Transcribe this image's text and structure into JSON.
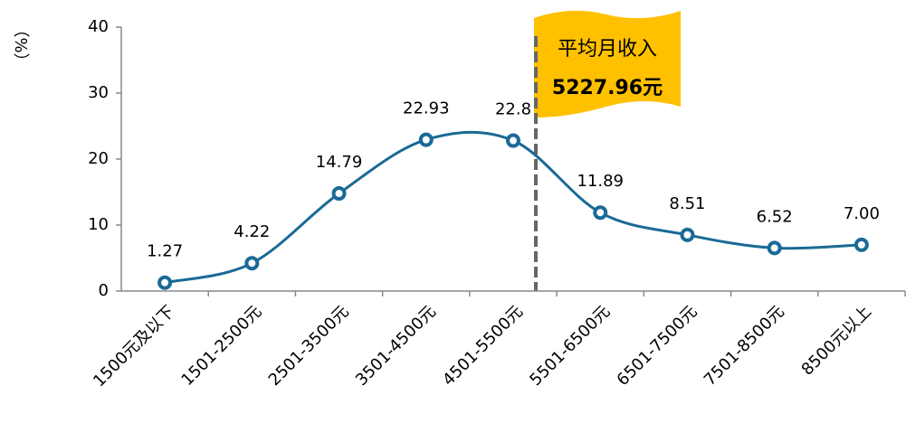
{
  "chart_data": {
    "type": "line",
    "y_label": "（%）",
    "categories": [
      "1500元及以下",
      "1501-2500元",
      "2501-3500元",
      "3501-4500元",
      "4501-5500元",
      "5501-6500元",
      "6501-7500元",
      "7501-8500元",
      "8500元以上"
    ],
    "series": [
      {
        "color": "#1a6a96",
        "values": [
          1.27,
          4.22,
          14.79,
          22.93,
          22.8,
          11.89,
          8.51,
          6.52,
          7.0
        ],
        "value_labels": [
          "1.27",
          "4.22",
          "14.79",
          "22.93",
          "22.8",
          "11.89",
          "8.51",
          "6.52",
          "7.00"
        ]
      }
    ],
    "ylim": [
      0,
      40
    ],
    "yticks": [
      0,
      10,
      20,
      30,
      40
    ],
    "annotation": {
      "line1": "平均月收入",
      "line2": "5227.96元",
      "color": "#ffc000"
    }
  }
}
